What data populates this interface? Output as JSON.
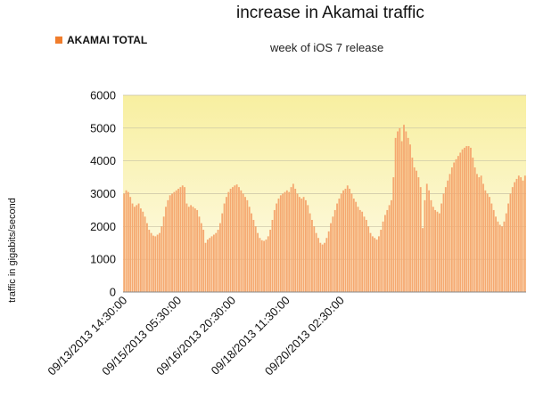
{
  "chart_data": {
    "type": "bar",
    "title": "increase in Akamai traffic",
    "subtitle": "week of iOS 7 release",
    "ylabel": "traffic in gigabits/second",
    "xlabel": "",
    "ylim": [
      0,
      6000
    ],
    "yticks": [
      0,
      1000,
      2000,
      3000,
      4000,
      5000,
      6000
    ],
    "grid": true,
    "legend_position": "top-left",
    "x_tick_labels": [
      "09/13/2013 14:30:00",
      "09/15/2013 05:30:00",
      "09/16/2013 20:30:00",
      "09/18/2013 11:30:00",
      "09/20/2013 02:30:00"
    ],
    "x_tick_bar_index": [
      0,
      26,
      52,
      78,
      104
    ],
    "colors": {
      "bar": "#f5a870",
      "bar_edge": "#f8c49c",
      "legend": "#f07d2c",
      "plot_bg_top": "#f8efa0",
      "plot_bg_bottom": "#fefcec",
      "grid": "#c8c2a4"
    },
    "series": [
      {
        "name": "AKAMAI TOTAL",
        "values": [
          3000,
          3100,
          3050,
          2900,
          2700,
          2600,
          2650,
          2700,
          2550,
          2450,
          2300,
          2100,
          1900,
          1800,
          1720,
          1700,
          1750,
          1800,
          2000,
          2300,
          2600,
          2800,
          2950,
          3000,
          3050,
          3100,
          3150,
          3200,
          3250,
          3200,
          2700,
          2600,
          2650,
          2600,
          2550,
          2500,
          2300,
          2100,
          1900,
          1500,
          1600,
          1650,
          1700,
          1750,
          1800,
          1900,
          2100,
          2400,
          2700,
          2900,
          3050,
          3150,
          3200,
          3250,
          3280,
          3200,
          3100,
          3000,
          2900,
          2800,
          2600,
          2400,
          2200,
          2000,
          1800,
          1650,
          1580,
          1560,
          1600,
          1700,
          1900,
          2200,
          2500,
          2700,
          2850,
          2950,
          3000,
          3050,
          3100,
          3050,
          3200,
          3300,
          3150,
          3000,
          2900,
          2850,
          2900,
          2800,
          2650,
          2400,
          2200,
          2000,
          1800,
          1650,
          1500,
          1450,
          1500,
          1650,
          1850,
          2100,
          2300,
          2500,
          2700,
          2850,
          3000,
          3100,
          3150,
          3250,
          3150,
          3000,
          2850,
          2750,
          2600,
          2500,
          2450,
          2300,
          2200,
          2000,
          1800,
          1700,
          1650,
          1600,
          1700,
          1900,
          2150,
          2350,
          2500,
          2650,
          2800,
          3500,
          4700,
          4900,
          5000,
          4600,
          5100,
          4900,
          4700,
          4500,
          4100,
          3800,
          3700,
          3500,
          3200,
          1950,
          2800,
          3300,
          3100,
          2800,
          2600,
          2500,
          2450,
          2400,
          2700,
          3000,
          3200,
          3400,
          3600,
          3800,
          3950,
          4050,
          4150,
          4250,
          4350,
          4400,
          4450,
          4450,
          4400,
          4100,
          3800,
          3600,
          3500,
          3550,
          3300,
          3100,
          3000,
          2900,
          2700,
          2500,
          2300,
          2150,
          2050,
          2000,
          2150,
          2400,
          2700,
          3000,
          3200,
          3350,
          3450,
          3550,
          3500,
          3400,
          3550
        ]
      }
    ]
  }
}
